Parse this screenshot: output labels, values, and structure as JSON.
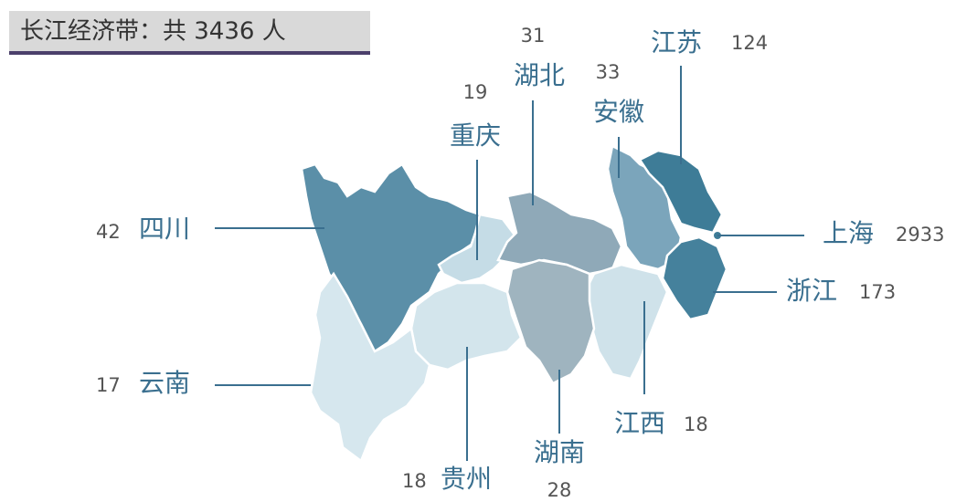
{
  "title": "长江经济带：共 3436 人",
  "regions": [
    {
      "name": "四川",
      "value": 42,
      "color": "#5b8fa8"
    },
    {
      "name": "重庆",
      "value": 19,
      "color": "#c5dce6"
    },
    {
      "name": "湖北",
      "value": 31,
      "color": "#8fa9b8"
    },
    {
      "name": "安徽",
      "value": 33,
      "color": "#7ba5bb"
    },
    {
      "name": "江苏",
      "value": 124,
      "color": "#3e7c97"
    },
    {
      "name": "上海",
      "value": 2933,
      "color": "#3e7c97"
    },
    {
      "name": "浙江",
      "value": 173,
      "color": "#45819c"
    },
    {
      "name": "江西",
      "value": 18,
      "color": "#cfe2ea"
    },
    {
      "name": "湖南",
      "value": 28,
      "color": "#9fb4bf"
    },
    {
      "name": "贵州",
      "value": 18,
      "color": "#d3e5ec"
    },
    {
      "name": "云南",
      "value": 17,
      "color": "#d6e7ee"
    }
  ]
}
